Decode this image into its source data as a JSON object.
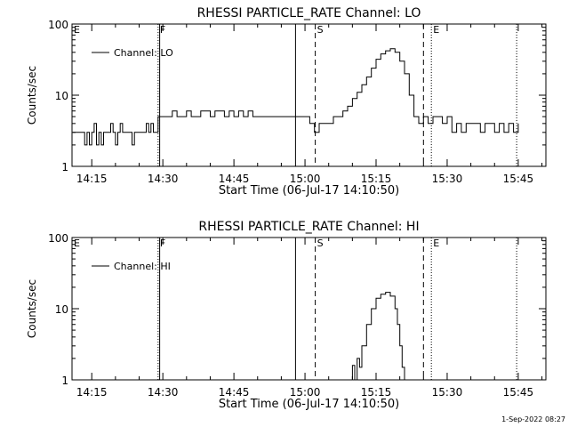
{
  "footer": {
    "timestamp": "1-Sep-2022 08:27"
  },
  "chart_data": [
    {
      "type": "line",
      "title": "RHESSI PARTICLE_RATE Channel: LO",
      "xlabel": "Start Time (06-Jul-17 14:10:50)",
      "ylabel": "Counts/sec",
      "yscale": "log",
      "ylim": [
        1,
        100
      ],
      "xlim": [
        "14:10:50",
        "15:50:50"
      ],
      "x_ticks": [
        "14:15",
        "14:30",
        "14:45",
        "15:00",
        "15:15",
        "15:30",
        "15:45"
      ],
      "y_ticks": [
        "1",
        "10",
        "100"
      ],
      "legend": {
        "label": "Channel: LO",
        "position": "top-left"
      },
      "markers": [
        {
          "label": "E",
          "time": "14:10:50",
          "style": "dotted"
        },
        {
          "label": "F",
          "time": "14:29:00",
          "style": "dotted"
        },
        {
          "label": "",
          "time": "14:29:20",
          "style": "solid"
        },
        {
          "label": "",
          "time": "14:58:00",
          "style": "solid"
        },
        {
          "label": "S",
          "time": "15:02:10",
          "style": "dashed"
        },
        {
          "label": "",
          "time": "15:25:00",
          "style": "dashed"
        },
        {
          "label": "E",
          "time": "15:26:40",
          "style": "dotted"
        },
        {
          "label": "",
          "time": "15:44:40",
          "style": "dotted"
        }
      ],
      "series": [
        {
          "x": [
            "14:11:00",
            "14:12:00",
            "14:13:00",
            "14:13:30",
            "14:14:00",
            "14:14:30",
            "14:15:00",
            "14:15:30",
            "14:16:00",
            "14:16:30",
            "14:17:00",
            "14:17:30",
            "14:18:00",
            "14:19:00",
            "14:19:30",
            "14:20:00",
            "14:20:30",
            "14:21:00",
            "14:21:30",
            "14:22:00",
            "14:23:00",
            "14:23:30",
            "14:24:00",
            "14:25:00",
            "14:26:00",
            "14:26:30",
            "14:27:00",
            "14:27:30",
            "14:28:00",
            "14:29:00",
            "14:30:00",
            "14:31:00",
            "14:32:00",
            "14:33:00",
            "14:34:00",
            "14:35:00",
            "14:36:00",
            "14:37:00",
            "14:38:00",
            "14:39:00",
            "14:40:00",
            "14:41:00",
            "14:42:00",
            "14:43:00",
            "14:44:00",
            "14:45:00",
            "14:46:00",
            "14:47:00",
            "14:48:00",
            "14:49:00",
            "14:50:00",
            "14:51:00",
            "14:52:00",
            "14:53:00",
            "14:54:00",
            "14:55:00",
            "14:56:00",
            "14:57:00",
            "14:58:00",
            "14:59:00",
            "15:00:00",
            "15:01:00",
            "15:02:00",
            "15:03:00",
            "15:04:00",
            "15:05:00",
            "15:06:00",
            "15:07:00",
            "15:08:00",
            "15:09:00",
            "15:10:00",
            "15:11:00",
            "15:12:00",
            "15:13:00",
            "15:14:00",
            "15:15:00",
            "15:16:00",
            "15:17:00",
            "15:18:00",
            "15:19:00",
            "15:20:00",
            "15:21:00",
            "15:22:00",
            "15:23:00",
            "15:24:00",
            "15:25:00",
            "15:26:00",
            "15:27:00",
            "15:28:00",
            "15:29:00",
            "15:30:00",
            "15:31:00",
            "15:32:00",
            "15:33:00",
            "15:34:00",
            "15:35:00",
            "15:36:00",
            "15:37:00",
            "15:38:00",
            "15:39:00",
            "15:40:00",
            "15:41:00",
            "15:42:00",
            "15:43:00",
            "15:44:00",
            "15:45:00"
          ],
          "y": [
            3,
            3,
            3,
            2,
            3,
            2,
            3,
            4,
            2,
            3,
            2,
            3,
            3,
            4,
            3,
            2,
            3,
            4,
            3,
            3,
            3,
            2,
            3,
            3,
            3,
            4,
            3,
            4,
            3,
            5,
            5,
            5,
            6,
            5,
            5,
            6,
            5,
            5,
            6,
            6,
            5,
            6,
            6,
            5,
            6,
            5,
            6,
            5,
            6,
            5,
            5,
            5,
            5,
            5,
            5,
            5,
            5,
            5,
            5,
            5,
            5,
            4,
            3,
            4,
            4,
            4,
            5,
            5,
            6,
            7,
            9,
            11,
            14,
            18,
            24,
            32,
            38,
            42,
            45,
            40,
            30,
            20,
            10,
            5,
            4,
            5,
            4,
            5,
            5,
            4,
            5,
            3,
            4,
            3,
            4,
            4,
            4,
            3,
            4,
            4,
            3,
            4,
            3,
            4,
            3,
            4
          ]
        }
      ]
    },
    {
      "type": "line",
      "title": "RHESSI PARTICLE_RATE Channel: HI",
      "xlabel": "Start Time (06-Jul-17 14:10:50)",
      "ylabel": "Counts/sec",
      "yscale": "log",
      "ylim": [
        1,
        100
      ],
      "xlim": [
        "14:10:50",
        "15:50:50"
      ],
      "x_ticks": [
        "14:15",
        "14:30",
        "14:45",
        "15:00",
        "15:15",
        "15:30",
        "15:45"
      ],
      "y_ticks": [
        "1",
        "10",
        "100"
      ],
      "legend": {
        "label": "Channel: HI",
        "position": "top-left"
      },
      "markers": [
        {
          "label": "E",
          "time": "14:10:50",
          "style": "dotted"
        },
        {
          "label": "F",
          "time": "14:29:00",
          "style": "dotted"
        },
        {
          "label": "",
          "time": "14:29:20",
          "style": "solid"
        },
        {
          "label": "",
          "time": "14:58:00",
          "style": "solid"
        },
        {
          "label": "S",
          "time": "15:02:10",
          "style": "dashed"
        },
        {
          "label": "",
          "time": "15:25:00",
          "style": "dashed"
        },
        {
          "label": "E",
          "time": "15:26:40",
          "style": "dotted"
        },
        {
          "label": "",
          "time": "15:44:40",
          "style": "dotted"
        }
      ],
      "series": [
        {
          "x": [
            "15:09:30",
            "15:10:00",
            "15:10:30",
            "15:11:00",
            "15:11:30",
            "15:12:00",
            "15:13:00",
            "15:14:00",
            "15:15:00",
            "15:16:00",
            "15:17:00",
            "15:18:00",
            "15:19:00",
            "15:19:30",
            "15:20:00",
            "15:20:30",
            "15:21:00"
          ],
          "y": [
            1,
            1.6,
            1,
            2,
            1.5,
            3,
            6,
            10,
            14,
            16,
            17,
            15,
            10,
            6,
            3,
            1.5,
            1
          ]
        }
      ]
    }
  ]
}
